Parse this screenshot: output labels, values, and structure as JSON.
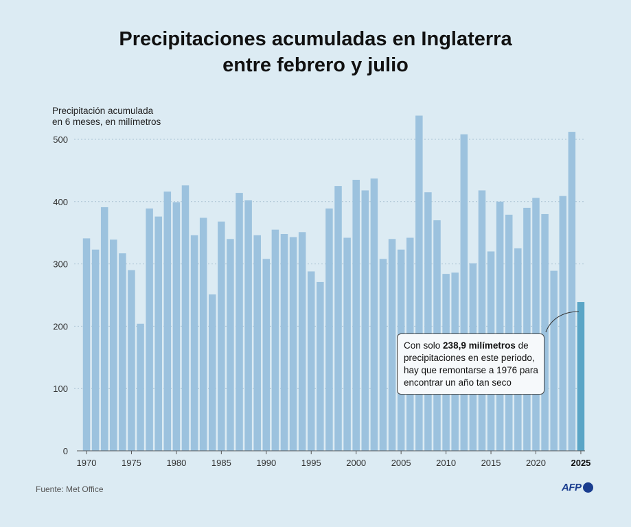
{
  "title_line1": "Precipitaciones acumuladas en Inglaterra",
  "title_line2": "entre febrero y julio",
  "ylabel_line1": "Precipitación acumulada",
  "ylabel_line2": "en 6 meses, en milímetros",
  "source": "Fuente: Met Office",
  "logo": "AFP",
  "callout": {
    "pre": "Con solo ",
    "bold": "238,9 milímetros",
    "rest": "de precipitaciones en este periodo, hay que remontarse a 1976 para encontrar un año tan seco"
  },
  "colors": {
    "bar": "#9cc2de",
    "highlight": "#5aa5c6",
    "background": "#dcebf3"
  },
  "chart_data": {
    "type": "bar",
    "x": [
      1970,
      1971,
      1972,
      1973,
      1974,
      1975,
      1976,
      1977,
      1978,
      1979,
      1980,
      1981,
      1982,
      1983,
      1984,
      1985,
      1986,
      1987,
      1988,
      1989,
      1990,
      1991,
      1992,
      1993,
      1994,
      1995,
      1996,
      1997,
      1998,
      1999,
      2000,
      2001,
      2002,
      2003,
      2004,
      2005,
      2006,
      2007,
      2008,
      2009,
      2010,
      2011,
      2012,
      2013,
      2014,
      2015,
      2016,
      2017,
      2018,
      2019,
      2020,
      2021,
      2022,
      2023,
      2024,
      2025
    ],
    "values": [
      341,
      323,
      391,
      339,
      317,
      290,
      204,
      389,
      376,
      416,
      399,
      426,
      346,
      374,
      251,
      368,
      340,
      414,
      402,
      346,
      308,
      355,
      348,
      343,
      351,
      288,
      271,
      389,
      425,
      342,
      435,
      418,
      437,
      308,
      340,
      323,
      342,
      538,
      415,
      370,
      284,
      286,
      508,
      301,
      418,
      320,
      400,
      379,
      325,
      390,
      406,
      380,
      289,
      409,
      512,
      238.9
    ],
    "highlight_x": 2025,
    "tick_labels_x": [
      "1970",
      "1975",
      "1980",
      "1985",
      "1990",
      "1995",
      "2000",
      "2005",
      "2010",
      "2015",
      "2020",
      "2025"
    ],
    "tick_labels_y": [
      "0",
      "100",
      "200",
      "300",
      "400",
      "500"
    ],
    "ylim": [
      0,
      540
    ],
    "grid": true
  }
}
